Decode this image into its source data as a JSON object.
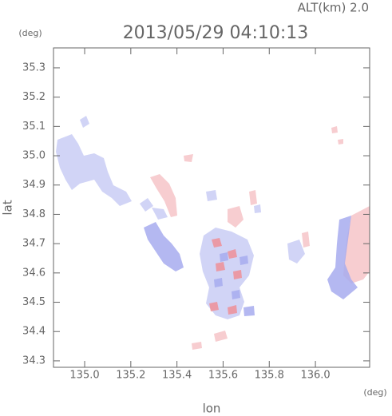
{
  "chart_data": {
    "type": "map",
    "annotation": "ALT(km) 2.0",
    "title": "2013/05/29 04:10:13",
    "xlabel": "lon",
    "ylabel": "lat",
    "xunit": "(deg)",
    "yunit": "(deg)",
    "xlim": [
      134.865,
      136.235
    ],
    "ylim": [
      34.278,
      35.368
    ],
    "xticks": [
      {
        "value": 135,
        "label": "135.0"
      },
      135.2,
      135.4,
      135.6,
      135.8,
      {
        "value": 136,
        "label": "136.0"
      }
    ],
    "yticks": [
      34.3,
      34.4,
      34.5,
      34.6,
      34.7,
      34.8,
      34.9,
      {
        "value": 35,
        "label": "35.0"
      },
      35.1,
      35.2,
      35.3
    ]
  }
}
